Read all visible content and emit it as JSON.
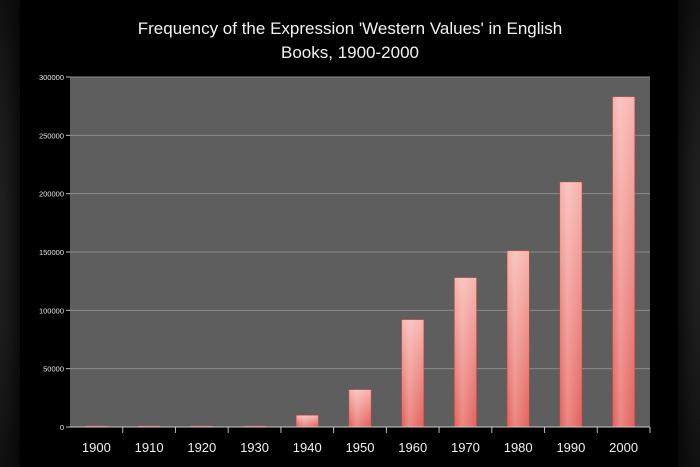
{
  "chart_data": {
    "type": "bar",
    "title_lines": [
      "Frequency of the Expression 'Western Values' in English",
      "Books, 1900-2000"
    ],
    "xlabel": "",
    "ylabel": "",
    "categories": [
      "1900",
      "1910",
      "1920",
      "1930",
      "1940",
      "1950",
      "1960",
      "1970",
      "1980",
      "1990",
      "2000"
    ],
    "values": [
      500,
      500,
      500,
      500,
      10000,
      32000,
      92000,
      128000,
      151000,
      210000,
      283000
    ],
    "ylim": [
      0,
      300000
    ],
    "yticks": [
      "0",
      "50000",
      "100000",
      "150000",
      "200000",
      "250000",
      "300000"
    ],
    "grid": true,
    "legend": "none",
    "colors": {
      "plot_background": "#5e5e5e",
      "page_background": "#000000",
      "bar_top": "#f8b3ad",
      "bar_bottom": "#e4605a",
      "gridline": "#8a8a8a"
    }
  }
}
